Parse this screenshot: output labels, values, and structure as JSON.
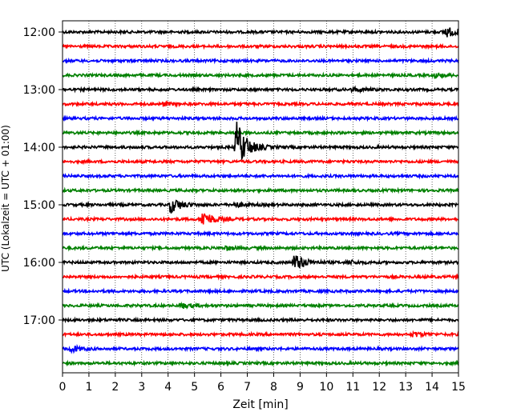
{
  "chart_data": {
    "type": "line",
    "xlabel": "Zeit  [min]",
    "ylabel": "UTC (Lokalzeit = UTC + 01:00)",
    "xlim": [
      0,
      15
    ],
    "x_ticks": [
      "0",
      "1",
      "2",
      "3",
      "4",
      "5",
      "6",
      "7",
      "8",
      "9",
      "10",
      "11",
      "12",
      "13",
      "14",
      "15"
    ],
    "y_ticks": [
      "12:00",
      "13:00",
      "14:00",
      "15:00",
      "16:00",
      "17:00"
    ],
    "grid": "vertical dotted",
    "colors": [
      "#000000",
      "#ff0000",
      "#0000ff",
      "#008000"
    ],
    "traces": [
      {
        "start": "12:00",
        "color": "#000000",
        "events": [
          {
            "t": 14.5,
            "amp": 0.35
          }
        ]
      },
      {
        "start": "12:15",
        "color": "#ff0000",
        "events": []
      },
      {
        "start": "12:30",
        "color": "#0000ff",
        "events": []
      },
      {
        "start": "12:45",
        "color": "#008000",
        "events": [
          {
            "t": 14.1,
            "amp": 0.15
          }
        ]
      },
      {
        "start": "13:00",
        "color": "#000000",
        "events": [
          {
            "t": 11.0,
            "amp": 0.12
          }
        ]
      },
      {
        "start": "13:15",
        "color": "#ff0000",
        "events": [
          {
            "t": 3.8,
            "amp": 0.1
          }
        ]
      },
      {
        "start": "13:30",
        "color": "#0000ff",
        "events": []
      },
      {
        "start": "13:45",
        "color": "#008000",
        "events": []
      },
      {
        "start": "14:00",
        "color": "#000000",
        "events": [
          {
            "t": 6.6,
            "amp": 1.6
          }
        ]
      },
      {
        "start": "14:15",
        "color": "#ff0000",
        "events": []
      },
      {
        "start": "14:30",
        "color": "#0000ff",
        "events": []
      },
      {
        "start": "14:45",
        "color": "#008000",
        "events": []
      },
      {
        "start": "15:00",
        "color": "#000000",
        "events": [
          {
            "t": 4.1,
            "amp": 0.5
          },
          {
            "t": 6.5,
            "amp": 0.15
          }
        ]
      },
      {
        "start": "15:15",
        "color": "#ff0000",
        "events": [
          {
            "t": 5.3,
            "amp": 0.55
          }
        ]
      },
      {
        "start": "15:30",
        "color": "#0000ff",
        "events": []
      },
      {
        "start": "15:45",
        "color": "#008000",
        "events": [
          {
            "t": 6.2,
            "amp": 0.12
          }
        ]
      },
      {
        "start": "16:00",
        "color": "#000000",
        "events": [
          {
            "t": 8.8,
            "amp": 0.55
          },
          {
            "t": 10.8,
            "amp": 0.12
          }
        ]
      },
      {
        "start": "16:15",
        "color": "#ff0000",
        "events": []
      },
      {
        "start": "16:30",
        "color": "#0000ff",
        "events": []
      },
      {
        "start": "16:45",
        "color": "#008000",
        "events": [
          {
            "t": 4.5,
            "amp": 0.15
          }
        ]
      },
      {
        "start": "17:00",
        "color": "#000000",
        "events": []
      },
      {
        "start": "17:15",
        "color": "#ff0000",
        "events": [
          {
            "t": 13.3,
            "amp": 0.15
          }
        ]
      },
      {
        "start": "17:30",
        "color": "#0000ff",
        "events": [
          {
            "t": 0.3,
            "amp": 0.2
          }
        ]
      },
      {
        "start": "17:45",
        "color": "#008000",
        "events": []
      }
    ]
  }
}
